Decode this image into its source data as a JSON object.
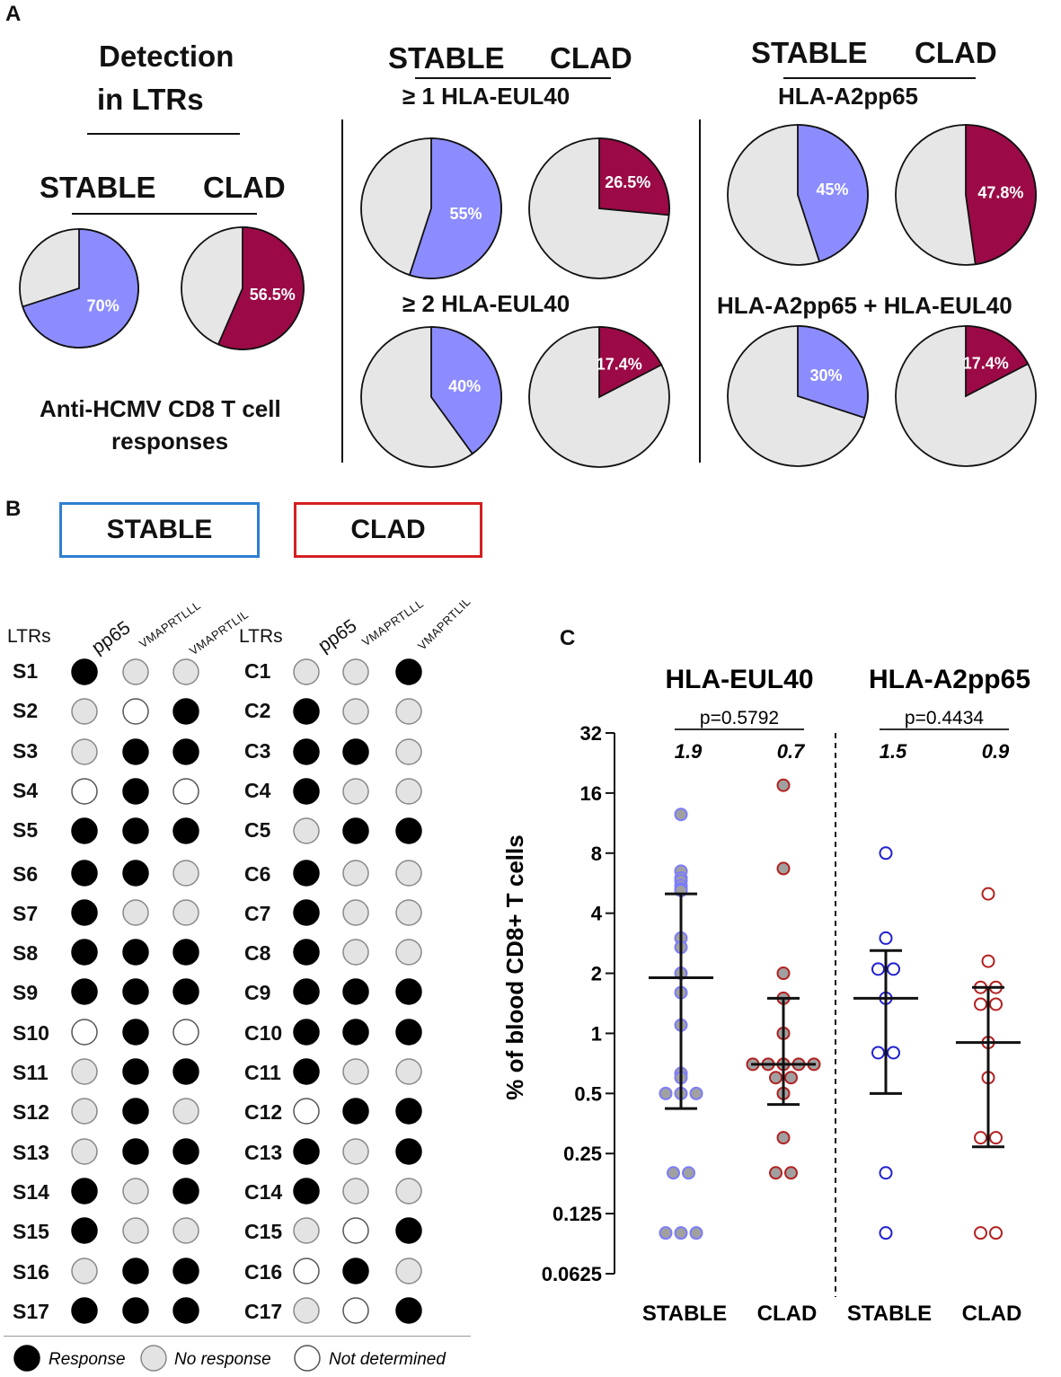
{
  "panel_a": {
    "letter": "A",
    "detection_title_1": "Detection",
    "detection_title_2": "in LTRs",
    "group_stable": "STABLE",
    "group_clad": "CLAD",
    "left_caption_1": "Anti-HCMV CD8  T cell",
    "left_caption_2": "responses",
    "eul40_1_label": "≥ 1 HLA-EUL40",
    "eul40_2_label": "≥ 2 HLA-EUL40",
    "a2pp65_label": "HLA-A2pp65",
    "combined_label": "HLA-A2pp65  + HLA-EUL40",
    "stable_color": "#8c8cff",
    "clad_color": "#9b0a46",
    "empty_color": "#e6e6e6",
    "pies": [
      {
        "group": "STABLE",
        "set": "anti-HCMV",
        "percent": 70,
        "label": "70%"
      },
      {
        "group": "CLAD",
        "set": "anti-HCMV",
        "percent": 56.5,
        "label": "56.5%"
      },
      {
        "group": "STABLE",
        "set": "≥1 HLA-EUL40",
        "percent": 55,
        "label": "55%"
      },
      {
        "group": "CLAD",
        "set": "≥1 HLA-EUL40",
        "percent": 26.5,
        "label": "26.5%"
      },
      {
        "group": "STABLE",
        "set": "≥2 HLA-EUL40",
        "percent": 40,
        "label": "40%"
      },
      {
        "group": "CLAD",
        "set": "≥2 HLA-EUL40",
        "percent": 17.4,
        "label": "17.4%"
      },
      {
        "group": "STABLE",
        "set": "HLA-A2pp65",
        "percent": 45,
        "label": "45%"
      },
      {
        "group": "CLAD",
        "set": "HLA-A2pp65",
        "percent": 47.8,
        "label": "47.8%"
      },
      {
        "group": "STABLE",
        "set": "HLA-A2pp65 + HLA-EUL40",
        "percent": 30,
        "label": "30%"
      },
      {
        "group": "CLAD",
        "set": "HLA-A2pp65 + HLA-EUL40",
        "percent": 17.4,
        "label": "17.4%"
      }
    ]
  },
  "panel_b": {
    "letter": "B",
    "stable_header": "STABLE",
    "clad_header": "CLAD",
    "stable_border": "#2f7fd0",
    "clad_border": "#d42020",
    "ltrs_label": "LTRs",
    "columns": [
      "pp65",
      "VMAPRTLLL",
      "VMAPRTLIL"
    ],
    "stable_rows": [
      {
        "id": "S1",
        "v": [
          "R",
          "N",
          "N"
        ]
      },
      {
        "id": "S2",
        "v": [
          "N",
          "D",
          "R"
        ]
      },
      {
        "id": "S3",
        "v": [
          "N",
          "R",
          "R"
        ]
      },
      {
        "id": "S4",
        "v": [
          "D",
          "R",
          "D"
        ]
      },
      {
        "id": "S5",
        "v": [
          "R",
          "R",
          "R"
        ]
      },
      {
        "id": "S6",
        "v": [
          "R",
          "R",
          "N"
        ]
      },
      {
        "id": "S7",
        "v": [
          "R",
          "N",
          "N"
        ]
      },
      {
        "id": "S8",
        "v": [
          "R",
          "R",
          "R"
        ]
      },
      {
        "id": "S9",
        "v": [
          "R",
          "R",
          "R"
        ]
      },
      {
        "id": "S10",
        "v": [
          "D",
          "R",
          "D"
        ]
      },
      {
        "id": "S11",
        "v": [
          "N",
          "R",
          "R"
        ]
      },
      {
        "id": "S12",
        "v": [
          "N",
          "R",
          "N"
        ]
      },
      {
        "id": "S13",
        "v": [
          "N",
          "R",
          "R"
        ]
      },
      {
        "id": "S14",
        "v": [
          "R",
          "N",
          "R"
        ]
      },
      {
        "id": "S15",
        "v": [
          "R",
          "N",
          "N"
        ]
      },
      {
        "id": "S16",
        "v": [
          "N",
          "R",
          "R"
        ]
      },
      {
        "id": "S17",
        "v": [
          "R",
          "R",
          "R"
        ]
      }
    ],
    "clad_rows": [
      {
        "id": "C1",
        "v": [
          "N",
          "N",
          "R"
        ]
      },
      {
        "id": "C2",
        "v": [
          "R",
          "N",
          "N"
        ]
      },
      {
        "id": "C3",
        "v": [
          "R",
          "R",
          "N"
        ]
      },
      {
        "id": "C4",
        "v": [
          "R",
          "N",
          "N"
        ]
      },
      {
        "id": "C5",
        "v": [
          "N",
          "R",
          "R"
        ]
      },
      {
        "id": "C6",
        "v": [
          "R",
          "N",
          "N"
        ]
      },
      {
        "id": "C7",
        "v": [
          "R",
          "N",
          "N"
        ]
      },
      {
        "id": "C8",
        "v": [
          "R",
          "N",
          "N"
        ]
      },
      {
        "id": "C9",
        "v": [
          "R",
          "R",
          "R"
        ]
      },
      {
        "id": "C10",
        "v": [
          "R",
          "R",
          "R"
        ]
      },
      {
        "id": "C11",
        "v": [
          "R",
          "N",
          "N"
        ]
      },
      {
        "id": "C12",
        "v": [
          "D",
          "R",
          "R"
        ]
      },
      {
        "id": "C13",
        "v": [
          "R",
          "N",
          "R"
        ]
      },
      {
        "id": "C14",
        "v": [
          "R",
          "N",
          "N"
        ]
      },
      {
        "id": "C15",
        "v": [
          "N",
          "D",
          "R"
        ]
      },
      {
        "id": "C16",
        "v": [
          "D",
          "R",
          "N"
        ]
      },
      {
        "id": "C17",
        "v": [
          "N",
          "D",
          "R"
        ]
      }
    ],
    "legend": {
      "response": "Response",
      "no_response": "No response",
      "not_determined": "Not determined"
    }
  },
  "chart_data": {
    "type": "scatter",
    "letter": "C",
    "title_left": "HLA-EUL40",
    "title_right": "HLA-A2pp65",
    "ylabel": "% of blood CD8+ T cells",
    "y_scale": "log2",
    "ylim": [
      0.0625,
      32
    ],
    "yticks": [
      0.0625,
      0.125,
      0.25,
      0.5,
      1,
      2,
      4,
      8,
      16,
      32
    ],
    "ytick_labels": [
      "0.0625",
      "0.125",
      "0.25",
      "0.5",
      "1",
      "2",
      "4",
      "8",
      "16",
      "32"
    ],
    "categories": [
      "STABLE",
      "CLAD",
      "STABLE",
      "CLAD"
    ],
    "p_values": [
      {
        "label": "p=0.5792",
        "between": [
          0,
          1
        ]
      },
      {
        "label": "p=0.4434",
        "between": [
          2,
          3
        ]
      }
    ],
    "median_labels": [
      "1.9",
      "0.7",
      "1.5",
      "0.9"
    ],
    "series": [
      {
        "name": "HLA-EUL40 STABLE",
        "fill": "#a0a0a0",
        "stroke": "#7b7bff",
        "median": 1.9,
        "q1": 0.42,
        "q3": 5.0,
        "values": [
          12.5,
          6.5,
          6.0,
          5.8,
          5.5,
          5.3,
          5.2,
          3.0,
          2.7,
          2.0,
          1.6,
          1.1,
          0.63,
          0.6,
          0.5,
          0.5,
          0.5,
          0.2,
          0.2,
          0.1,
          0.1,
          0.1
        ]
      },
      {
        "name": "HLA-EUL40 CLAD",
        "fill": "#a0a0a0",
        "stroke": "#b32020",
        "median": 0.7,
        "q1": 0.44,
        "q3": 1.5,
        "values": [
          17.5,
          6.7,
          2.0,
          1.5,
          1.0,
          0.7,
          0.7,
          0.7,
          0.7,
          0.7,
          0.6,
          0.6,
          0.5,
          0.3,
          0.2,
          0.2
        ]
      },
      {
        "name": "HLA-A2pp65 STABLE",
        "fill": "#ffffff",
        "stroke": "#2020d0",
        "median": 1.5,
        "q1": 0.5,
        "q3": 2.6,
        "values": [
          8.0,
          3.0,
          2.1,
          2.1,
          1.5,
          0.8,
          0.8,
          0.2,
          0.1
        ]
      },
      {
        "name": "HLA-A2pp65 CLAD",
        "fill": "#ffffff",
        "stroke": "#b32020",
        "median": 0.9,
        "q1": 0.27,
        "q3": 1.7,
        "values": [
          5.0,
          2.3,
          1.7,
          1.7,
          1.4,
          1.4,
          0.9,
          0.6,
          0.3,
          0.3,
          0.1,
          0.1
        ]
      }
    ]
  }
}
